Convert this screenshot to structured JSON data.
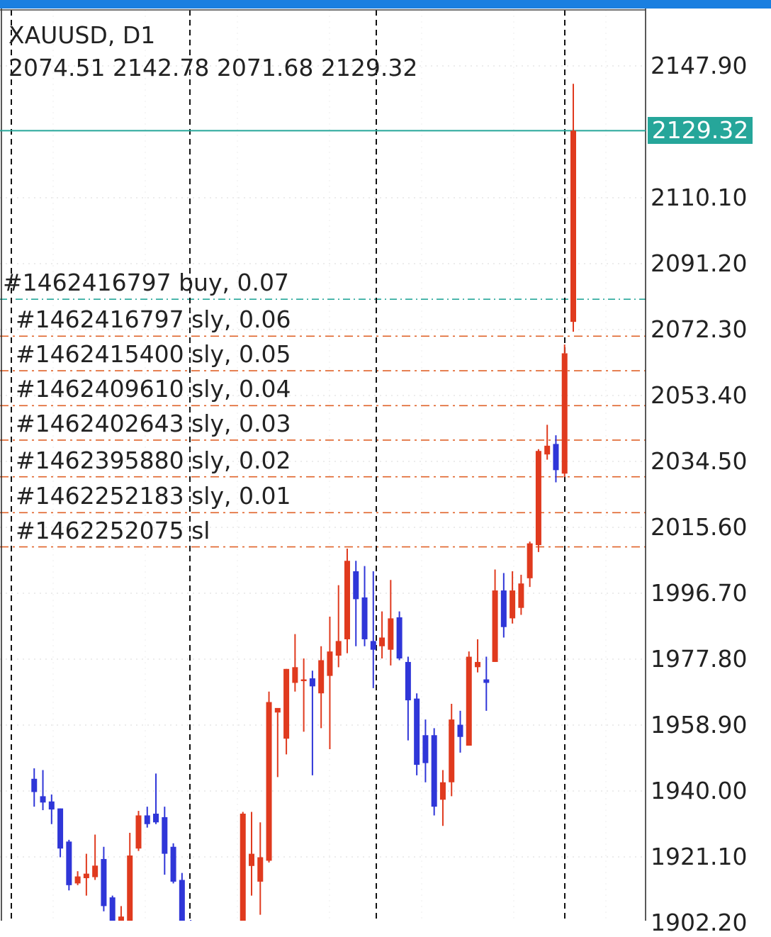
{
  "header": {
    "symbol": "XAUUSD, D1",
    "ohlc": "2074.51 2142.78 2071.68 2129.32"
  },
  "current_price": {
    "label": "2129.32",
    "value": 2129.32,
    "color": "#26a69a"
  },
  "orders": [
    {
      "label": "#1462416797 buy, 0.07",
      "price": 2081.0,
      "line_color": "#26a69a"
    },
    {
      "label": "#1462416797 sly, 0.06",
      "price": 2070.4,
      "line_color": "#e0632a"
    },
    {
      "label": "#1462415400 sly, 0.05",
      "price": 2060.5,
      "line_color": "#e0632a"
    },
    {
      "label": "#1462409610 sly, 0.04",
      "price": 2050.5,
      "line_color": "#e0632a"
    },
    {
      "label": "#1462402643 sly, 0.03",
      "price": 2040.6,
      "line_color": "#e0632a"
    },
    {
      "label": "#1462395880 sly, 0.02",
      "price": 2030.1,
      "line_color": "#e0632a"
    },
    {
      "label": "#1462252183 sly, 0.01",
      "price": 2019.8,
      "line_color": "#e0632a"
    },
    {
      "label": "#1462252075 sl",
      "price": 2010.0,
      "line_color": "#e0632a"
    }
  ],
  "colors": {
    "bull": "#e03a1e",
    "bear": "#2f36d8",
    "grid": "#d8d8d8",
    "period_sep": "#111111"
  },
  "chart_data": {
    "type": "candlestick",
    "symbol": "XAUUSD",
    "timeframe": "D1",
    "y_ticks": [
      2147.9,
      2110.1,
      2091.2,
      2072.3,
      2053.4,
      2034.5,
      2015.6,
      1996.7,
      1977.8,
      1958.9,
      1940.0,
      1921.1,
      1902.2
    ],
    "y_tick_labels": [
      "2147.90",
      "2110.10",
      "2091.20",
      "2072.30",
      "2053.40",
      "2034.50",
      "2015.60",
      "1996.70",
      "1977.80",
      "1958.90",
      "1940.00",
      "1921.10",
      "1902.20"
    ],
    "ylim": [
      1897.0,
      2164.0
    ],
    "candles": [
      {
        "o": 1943.5,
        "h": 1946.5,
        "l": 1935.5,
        "c": 1939.7
      },
      {
        "o": 1938.5,
        "h": 1946.0,
        "l": 1934.5,
        "c": 1936.7
      },
      {
        "o": 1937.0,
        "h": 1939.0,
        "l": 1930.5,
        "c": 1934.7
      },
      {
        "o": 1935.0,
        "h": 1935.0,
        "l": 1921.0,
        "c": 1923.5
      },
      {
        "o": 1925.5,
        "h": 1926.0,
        "l": 1911.5,
        "c": 1913.0
      },
      {
        "o": 1913.5,
        "h": 1917.0,
        "l": 1913.0,
        "c": 1915.5
      },
      {
        "o": 1915.0,
        "h": 1922.0,
        "l": 1910.0,
        "c": 1916.3
      },
      {
        "o": 1915.3,
        "h": 1927.5,
        "l": 1914.5,
        "c": 1918.6
      },
      {
        "o": 1920.5,
        "h": 1924.0,
        "l": 1905.5,
        "c": 1907.0
      },
      {
        "o": 1909.5,
        "h": 1910.0,
        "l": 1899.0,
        "c": 1902.0
      },
      {
        "o": 1901.5,
        "h": 1907.0,
        "l": 1899.0,
        "c": 1904.0
      },
      {
        "o": 1902.2,
        "h": 1928.0,
        "l": 1898.0,
        "c": 1921.5
      },
      {
        "o": 1923.5,
        "h": 1934.3,
        "l": 1922.8,
        "c": 1933.0
      },
      {
        "o": 1933.0,
        "h": 1935.5,
        "l": 1929.5,
        "c": 1930.5
      },
      {
        "o": 1933.5,
        "h": 1945.0,
        "l": 1930.5,
        "c": 1931.0
      },
      {
        "o": 1932.5,
        "h": 1935.5,
        "l": 1916.0,
        "c": 1922.0
      },
      {
        "o": 1924.0,
        "h": 1925.0,
        "l": 1913.5,
        "c": 1914.0
      },
      {
        "o": 1914.5,
        "h": 1916.5,
        "l": 1898.0,
        "c": 1902.0
      },
      {
        "o": 1902.5,
        "h": 1903.0,
        "l": 1899.5,
        "c": 1900.0
      },
      {
        "o": 1899.5,
        "h": 1900.5,
        "l": 1899.0,
        "c": 1900.0
      },
      {
        "o": 1899.5,
        "h": 1900.5,
        "l": 1899.0,
        "c": 1900.0
      },
      {
        "o": 1899.5,
        "h": 1900.5,
        "l": 1899.0,
        "c": 1900.0
      },
      {
        "o": 1899.5,
        "h": 1900.5,
        "l": 1899.0,
        "c": 1900.0
      },
      {
        "o": 1899.5,
        "h": 1900.5,
        "l": 1899.0,
        "c": 1900.0
      },
      {
        "o": 1899.0,
        "h": 1934.0,
        "l": 1893.5,
        "c": 1933.5
      },
      {
        "o": 1918.5,
        "h": 1934.0,
        "l": 1910.0,
        "c": 1922.0
      },
      {
        "o": 1914.0,
        "h": 1931.0,
        "l": 1904.5,
        "c": 1921.0
      },
      {
        "o": 1920.0,
        "h": 1968.5,
        "l": 1919.5,
        "c": 1965.5
      },
      {
        "o": 1962.5,
        "h": 1962.5,
        "l": 1944.0,
        "c": 1963.8
      },
      {
        "o": 1955.0,
        "h": 1975.0,
        "l": 1950.5,
        "c": 1975.0
      },
      {
        "o": 1971.0,
        "h": 1985.0,
        "l": 1968.5,
        "c": 1975.5
      },
      {
        "o": 1971.5,
        "h": 1978.0,
        "l": 1957.0,
        "c": 1972.0
      },
      {
        "o": 1972.3,
        "h": 1974.5,
        "l": 1944.5,
        "c": 1970.0
      },
      {
        "o": 1968.0,
        "h": 1981.5,
        "l": 1958.0,
        "c": 1977.5
      },
      {
        "o": 1973.0,
        "h": 1990.0,
        "l": 1952.0,
        "c": 1980.0
      },
      {
        "o": 1978.8,
        "h": 1999.0,
        "l": 1975.5,
        "c": 1983.0
      },
      {
        "o": 1983.5,
        "h": 2009.5,
        "l": 1979.5,
        "c": 2006.0
      },
      {
        "o": 2003.0,
        "h": 2006.0,
        "l": 1981.5,
        "c": 1995.0
      },
      {
        "o": 1995.5,
        "h": 2004.5,
        "l": 1981.5,
        "c": 1983.5
      },
      {
        "o": 1983.0,
        "h": 2003.0,
        "l": 1969.5,
        "c": 1980.5
      },
      {
        "o": 1981.5,
        "h": 1991.5,
        "l": 1978.0,
        "c": 1984.0
      },
      {
        "o": 1980.5,
        "h": 2000.5,
        "l": 1976.0,
        "c": 1989.5
      },
      {
        "o": 1989.8,
        "h": 1991.5,
        "l": 1977.5,
        "c": 1978.0
      },
      {
        "o": 1977.0,
        "h": 1978.5,
        "l": 1954.5,
        "c": 1966.0
      },
      {
        "o": 1966.5,
        "h": 1968.0,
        "l": 1944.5,
        "c": 1947.5
      },
      {
        "o": 1956.0,
        "h": 1960.5,
        "l": 1942.5,
        "c": 1948.0
      },
      {
        "o": 1956.0,
        "h": 1958.0,
        "l": 1933.0,
        "c": 1935.5
      },
      {
        "o": 1937.5,
        "h": 1946.0,
        "l": 1930.0,
        "c": 1942.5
      },
      {
        "o": 1942.5,
        "h": 1965.0,
        "l": 1938.5,
        "c": 1960.5
      },
      {
        "o": 1959.0,
        "h": 1963.0,
        "l": 1951.0,
        "c": 1955.5
      },
      {
        "o": 1953.0,
        "h": 1980.0,
        "l": 1954.5,
        "c": 1978.5
      },
      {
        "o": 1975.5,
        "h": 1983.5,
        "l": 1974.0,
        "c": 1977.0
      },
      {
        "o": 1972.0,
        "h": 1978.5,
        "l": 1963.0,
        "c": 1971.0
      },
      {
        "o": 1977.0,
        "h": 2003.5,
        "l": 1977.0,
        "c": 1997.5
      },
      {
        "o": 1997.5,
        "h": 2002.5,
        "l": 1984.0,
        "c": 1987.0
      },
      {
        "o": 1989.5,
        "h": 2003.0,
        "l": 1988.0,
        "c": 1997.5
      },
      {
        "o": 1992.5,
        "h": 2002.0,
        "l": 1990.5,
        "c": 1999.5
      },
      {
        "o": 2001.0,
        "h": 2011.5,
        "l": 1998.5,
        "c": 2011.0
      },
      {
        "o": 2010.5,
        "h": 2038.0,
        "l": 2008.5,
        "c": 2037.5
      },
      {
        "o": 2036.5,
        "h": 2045.0,
        "l": 2035.0,
        "c": 2039.0
      },
      {
        "o": 2039.5,
        "h": 2042.0,
        "l": 2028.5,
        "c": 2032.0
      },
      {
        "o": 2031.0,
        "h": 2068.0,
        "l": 2030.0,
        "c": 2065.5
      },
      {
        "o": 2074.51,
        "h": 2142.78,
        "l": 2071.68,
        "c": 2129.32
      }
    ]
  }
}
